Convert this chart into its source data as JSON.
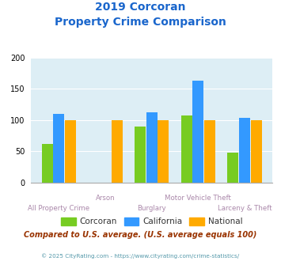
{
  "title_line1": "2019 Corcoran",
  "title_line2": "Property Crime Comparison",
  "categories": [
    "All Property Crime",
    "Arson",
    "Burglary",
    "Motor Vehicle Theft",
    "Larceny & Theft"
  ],
  "corcoran": [
    62,
    0,
    90,
    107,
    48
  ],
  "california": [
    110,
    0,
    113,
    163,
    103
  ],
  "national": [
    100,
    100,
    100,
    100,
    100
  ],
  "colors": {
    "corcoran": "#77cc22",
    "california": "#3399ff",
    "national": "#ffaa00"
  },
  "ylim": [
    0,
    200
  ],
  "yticks": [
    0,
    50,
    100,
    150,
    200
  ],
  "bg_color": "#ddeef5",
  "title_color": "#1a66cc",
  "xlabel_color": "#aa88aa",
  "subtitle": "Compared to U.S. average. (U.S. average equals 100)",
  "subtitle_color": "#993300",
  "footer": "© 2025 CityRating.com - https://www.cityrating.com/crime-statistics/",
  "footer_color": "#5599aa",
  "legend_labels": [
    "Corcoran",
    "California",
    "National"
  ],
  "legend_text_color": "#333333"
}
